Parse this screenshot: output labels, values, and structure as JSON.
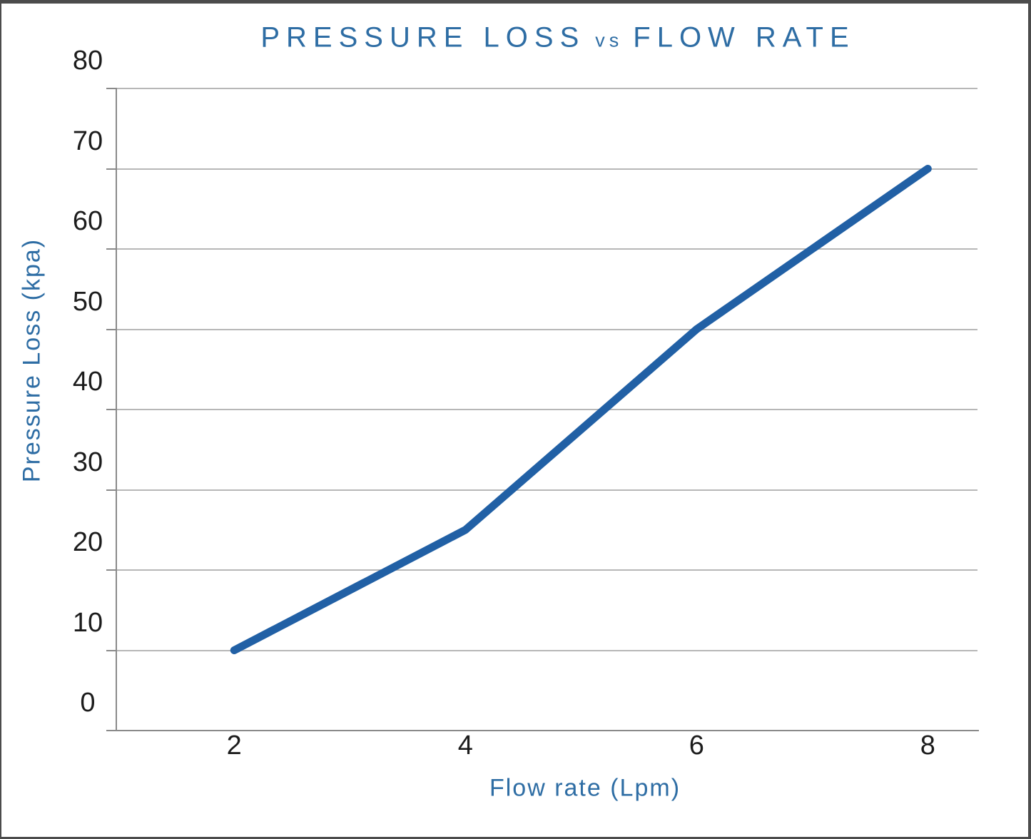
{
  "title": {
    "part1": "PRESSURE LOSS",
    "part2": "vs",
    "part3": "FLOW RATE"
  },
  "y_axis": {
    "title": "Pressure Loss (kpa)",
    "ticks": [
      80,
      70,
      60,
      50,
      40,
      30,
      20,
      10,
      0
    ]
  },
  "x_axis": {
    "title": "Flow rate (Lpm)",
    "ticks": [
      2,
      4,
      6,
      8
    ]
  },
  "chart_data": {
    "type": "line",
    "title": "PRESSURE LOSS vs FLOW RATE",
    "xlabel": "Flow rate (Lpm)",
    "ylabel": "Pressure Loss (kpa)",
    "x": [
      2,
      4,
      6,
      8
    ],
    "y": [
      10,
      25,
      50,
      70
    ],
    "xlim": [
      0.98,
      8.43
    ],
    "ylim": [
      0,
      80
    ],
    "y_tick_step": 10,
    "grid": "horizontal",
    "legend": "none",
    "line_color": "#2160a5",
    "line_width": 11
  },
  "colors": {
    "accent_text": "#2e6da4",
    "tick_label": "#1c1c1c",
    "gridline": "#b7b7b7",
    "axis": "#8a8a8a",
    "frame_border": "#4c4c4c",
    "background": "#ffffff"
  }
}
